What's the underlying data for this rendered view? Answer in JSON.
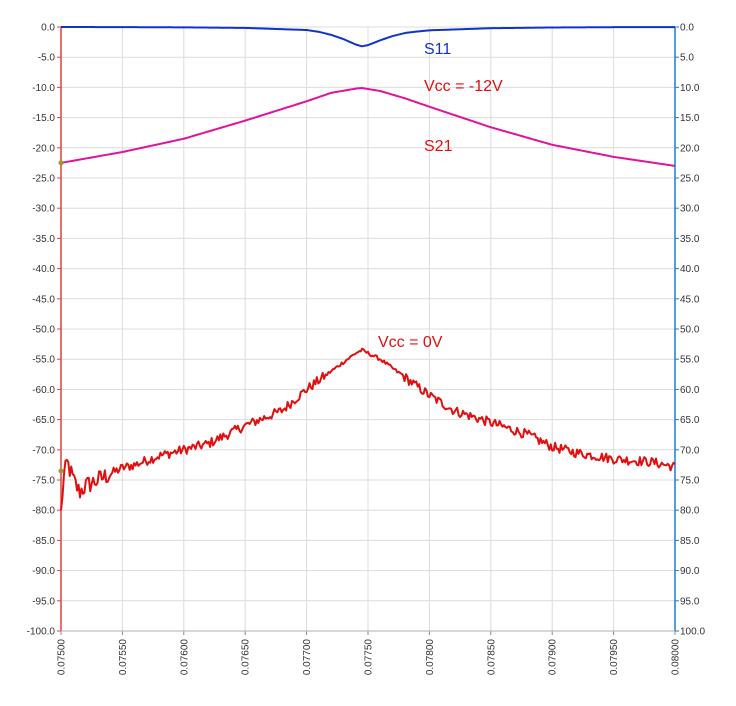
{
  "chart_data": {
    "type": "line",
    "x_range": [
      0.075,
      0.08
    ],
    "x_tick_labels": [
      "0.07500",
      "0.07550",
      "0.07600",
      "0.07650",
      "0.07700",
      "0.07750",
      "0.07800",
      "0.07850",
      "0.07900",
      "0.07950",
      "0.08000"
    ],
    "y_range": [
      -100,
      0
    ],
    "y_tick_labels": [
      "0.0",
      "-5.0",
      "-10.0",
      "-15.0",
      "-20.0",
      "-25.0",
      "-30.0",
      "-35.0",
      "-40.0",
      "-45.0",
      "-50.0",
      "-55.0",
      "-60.0",
      "-65.0",
      "-70.0",
      "-75.0",
      "-80.0",
      "-85.0",
      "-90.0",
      "-95.0",
      "-100.0"
    ],
    "y2_tick_labels": [
      "0.0",
      "5.0",
      "10.0",
      "15.0",
      "20.0",
      "25.0",
      "30.0",
      "35.0",
      "40.0",
      "45.0",
      "50.0",
      "55.0",
      "60.0",
      "65.0",
      "70.0",
      "75.0",
      "80.0",
      "85.0",
      "90.0",
      "95.0",
      "100.0"
    ],
    "grid": true,
    "series": [
      {
        "name": "S11",
        "color": "#1034c8",
        "x": [
          0.075,
          0.0755,
          0.076,
          0.0765,
          0.077,
          0.0771,
          0.0772,
          0.0773,
          0.0774,
          0.07745,
          0.0775,
          0.0776,
          0.0777,
          0.0778,
          0.0779,
          0.078,
          0.0785,
          0.079,
          0.0795,
          0.08
        ],
        "y": [
          0,
          -0.02,
          -0.06,
          -0.15,
          -0.5,
          -0.8,
          -1.3,
          -2.0,
          -2.9,
          -3.2,
          -3.0,
          -2.2,
          -1.5,
          -1.0,
          -0.75,
          -0.55,
          -0.2,
          -0.08,
          -0.03,
          -0.02
        ]
      },
      {
        "name": "S21 (Vcc = -12V)",
        "color": "#e0129e",
        "x": [
          0.075,
          0.0755,
          0.076,
          0.0765,
          0.077,
          0.0772,
          0.0774,
          0.07745,
          0.0776,
          0.0778,
          0.078,
          0.0785,
          0.079,
          0.0795,
          0.08
        ],
        "y": [
          -22.5,
          -20.7,
          -18.5,
          -15.5,
          -12.3,
          -10.9,
          -10.2,
          -10.1,
          -10.6,
          -11.8,
          -13.2,
          -16.6,
          -19.5,
          -21.5,
          -23.0
        ]
      },
      {
        "name": "S21 (Vcc = 0V)",
        "color": "#e01010",
        "noisy": true,
        "x": [
          0.075,
          0.07502,
          0.07505,
          0.0751,
          0.07515,
          0.0752,
          0.0753,
          0.0755,
          0.0756,
          0.0758,
          0.076,
          0.0762,
          0.0765,
          0.0768,
          0.077,
          0.0772,
          0.0774,
          0.07745,
          0.0776,
          0.0778,
          0.078,
          0.0782,
          0.0785,
          0.0788,
          0.079,
          0.0792,
          0.0795,
          0.0798,
          0.08
        ],
        "y": [
          -80.5,
          -75,
          -72,
          -75,
          -77,
          -76,
          -75,
          -73,
          -72.5,
          -71,
          -70,
          -69,
          -66,
          -63.5,
          -60,
          -57,
          -54,
          -53.5,
          -55,
          -58,
          -61,
          -63.5,
          -65.5,
          -67.5,
          -69.5,
          -70.5,
          -71.5,
          -72,
          -72.8
        ]
      }
    ],
    "annotations": [
      "S11",
      "Vcc = -12V",
      "S21",
      "Vcc = 0V"
    ]
  }
}
